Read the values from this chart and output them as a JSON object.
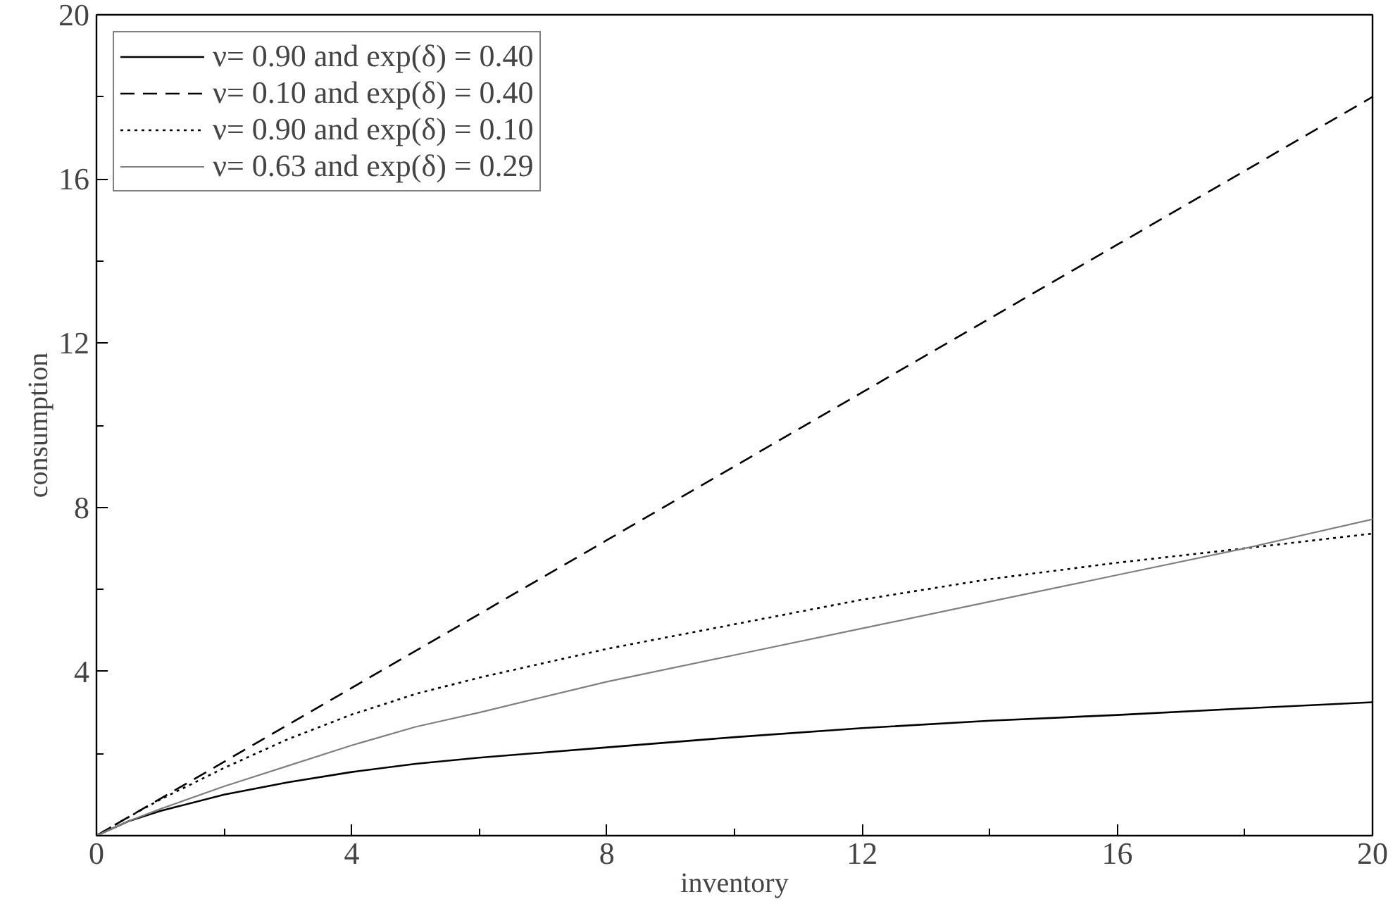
{
  "chart_data": {
    "type": "line",
    "xlabel": "inventory",
    "ylabel": "consumption",
    "xlim": [
      0,
      20
    ],
    "ylim": [
      0,
      20
    ],
    "xticks": [
      0,
      4,
      8,
      12,
      16,
      20
    ],
    "yticks": [
      4,
      8,
      12,
      16,
      20
    ],
    "grid": false,
    "legend": "top left",
    "x": [
      0,
      0.5,
      1,
      2,
      3,
      4,
      5,
      6,
      8,
      10,
      12,
      14,
      16,
      18,
      20
    ],
    "series": [
      {
        "name": "ν= 0.90 and exp(δ) = 0.40",
        "color": "#000000",
        "line_style": "solid",
        "values": [
          0,
          0.35,
          0.6,
          1.0,
          1.3,
          1.55,
          1.75,
          1.9,
          2.15,
          2.4,
          2.62,
          2.8,
          2.94,
          3.1,
          3.25
        ]
      },
      {
        "name": "ν= 0.10 and exp(δ) = 0.40",
        "color": "#000000",
        "line_style": "dashed",
        "values": [
          0,
          0.45,
          0.9,
          1.8,
          2.7,
          3.6,
          4.5,
          5.4,
          7.2,
          9.0,
          10.8,
          12.6,
          14.4,
          16.2,
          18.0
        ]
      },
      {
        "name": "ν= 0.90 and exp(δ) = 0.10",
        "color": "#000000",
        "line_style": "dotted",
        "values": [
          0,
          0.45,
          0.88,
          1.65,
          2.35,
          2.95,
          3.45,
          3.85,
          4.55,
          5.15,
          5.75,
          6.25,
          6.65,
          7.0,
          7.36
        ]
      },
      {
        "name": "ν= 0.63 and exp(δ) = 0.29",
        "color": "#808080",
        "line_style": "solid",
        "values": [
          0,
          0.35,
          0.65,
          1.2,
          1.7,
          2.2,
          2.65,
          3.0,
          3.75,
          4.4,
          5.05,
          5.7,
          6.35,
          7.0,
          7.71
        ]
      }
    ]
  }
}
